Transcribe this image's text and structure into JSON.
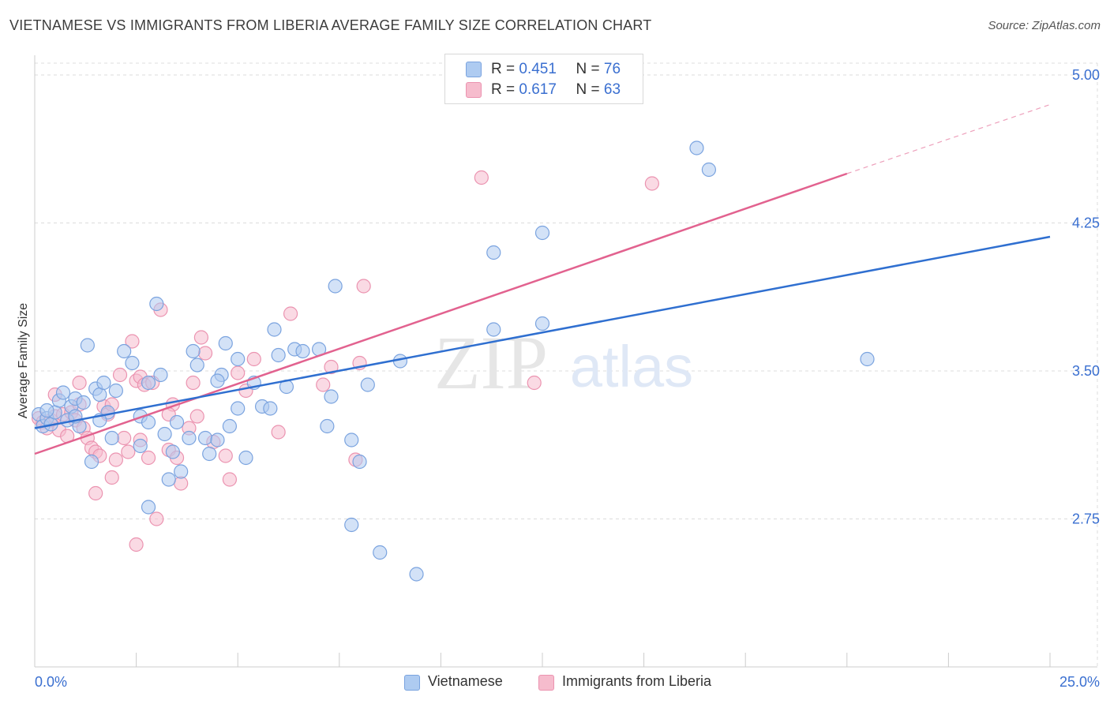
{
  "header": {
    "title": "VIETNAMESE VS IMMIGRANTS FROM LIBERIA AVERAGE FAMILY SIZE CORRELATION CHART",
    "source": "Source: ZipAtlas.com"
  },
  "watermark": {
    "zip": "ZIP",
    "atlas": "atlas"
  },
  "stats": {
    "vietnamese": {
      "r_label": "R =",
      "r": "0.451",
      "n_label": "N =",
      "n": "76"
    },
    "liberia": {
      "r_label": "R =",
      "r": "0.617",
      "n_label": "N =",
      "n": "63"
    }
  },
  "legend": {
    "vietnamese": "Vietnamese",
    "liberia": "Immigrants from Liberia"
  },
  "colors": {
    "blue_fill": "#aecbf1",
    "blue_stroke": "#7aa3df",
    "blue_line": "#2f6fd0",
    "pink_fill": "#f6bccd",
    "pink_stroke": "#eb93b0",
    "pink_line": "#e2628f",
    "tick_label": "#3a6fd0",
    "grid": "#dcdcdc"
  },
  "chart_data": {
    "type": "scatter",
    "title": "VIETNAMESE VS IMMIGRANTS FROM LIBERIA AVERAGE FAMILY SIZE CORRELATION CHART",
    "xlabel": "",
    "ylabel": "Average Family Size",
    "xlim": [
      0,
      25
    ],
    "ylim": [
      2.0,
      5.1
    ],
    "x_tick_labels": [
      "0.0%",
      "25.0%"
    ],
    "y_ticks": [
      2.75,
      3.5,
      4.25,
      5.0
    ],
    "y_tick_labels": [
      "2.75",
      "3.50",
      "4.25",
      "5.00"
    ],
    "grid": true,
    "legend_position": "bottom",
    "series": [
      {
        "name": "Vietnamese",
        "trend": {
          "x": [
            0,
            25
          ],
          "y": [
            3.21,
            4.18
          ]
        },
        "points": [
          [
            0.1,
            3.28
          ],
          [
            0.2,
            3.22
          ],
          [
            0.3,
            3.26
          ],
          [
            0.4,
            3.23
          ],
          [
            0.5,
            3.29
          ],
          [
            0.6,
            3.35
          ],
          [
            0.7,
            3.39
          ],
          [
            0.8,
            3.25
          ],
          [
            0.9,
            3.32
          ],
          [
            1.0,
            3.36
          ],
          [
            1.1,
            3.22
          ],
          [
            1.2,
            3.34
          ],
          [
            1.3,
            3.63
          ],
          [
            1.4,
            3.04
          ],
          [
            1.5,
            3.41
          ],
          [
            1.6,
            3.38
          ],
          [
            1.7,
            3.44
          ],
          [
            1.8,
            3.29
          ],
          [
            1.9,
            3.16
          ],
          [
            2.0,
            3.4
          ],
          [
            2.2,
            3.6
          ],
          [
            2.4,
            3.54
          ],
          [
            2.6,
            3.27
          ],
          [
            2.6,
            3.12
          ],
          [
            2.8,
            3.24
          ],
          [
            3.0,
            3.84
          ],
          [
            3.1,
            3.48
          ],
          [
            3.2,
            3.18
          ],
          [
            3.3,
            2.95
          ],
          [
            3.4,
            3.09
          ],
          [
            3.5,
            3.24
          ],
          [
            3.6,
            2.99
          ],
          [
            3.8,
            3.16
          ],
          [
            3.9,
            3.6
          ],
          [
            4.0,
            3.53
          ],
          [
            4.2,
            3.16
          ],
          [
            4.3,
            3.08
          ],
          [
            4.5,
            3.15
          ],
          [
            4.6,
            3.48
          ],
          [
            4.7,
            3.64
          ],
          [
            4.8,
            3.22
          ],
          [
            5.0,
            3.56
          ],
          [
            5.2,
            3.06
          ],
          [
            5.4,
            3.44
          ],
          [
            5.6,
            3.32
          ],
          [
            5.8,
            3.31
          ],
          [
            5.9,
            3.71
          ],
          [
            6.0,
            3.58
          ],
          [
            6.2,
            3.42
          ],
          [
            6.4,
            3.61
          ],
          [
            6.6,
            3.6
          ],
          [
            7.0,
            3.61
          ],
          [
            7.2,
            3.22
          ],
          [
            7.3,
            3.37
          ],
          [
            7.4,
            3.93
          ],
          [
            7.8,
            3.15
          ],
          [
            8.0,
            3.04
          ],
          [
            8.2,
            3.43
          ],
          [
            9.0,
            3.55
          ],
          [
            11.3,
            3.71
          ],
          [
            11.3,
            4.1
          ],
          [
            12.5,
            3.74
          ],
          [
            12.5,
            4.2
          ],
          [
            16.3,
            4.63
          ],
          [
            16.6,
            4.52
          ],
          [
            20.5,
            3.56
          ],
          [
            2.8,
            2.81
          ],
          [
            7.8,
            2.72
          ],
          [
            8.5,
            2.58
          ],
          [
            9.4,
            2.47
          ],
          [
            0.3,
            3.3
          ],
          [
            1.0,
            3.27
          ],
          [
            1.6,
            3.25
          ],
          [
            2.8,
            3.44
          ],
          [
            4.5,
            3.45
          ],
          [
            5.0,
            3.31
          ]
        ]
      },
      {
        "name": "Immigrants from Liberia",
        "trend": {
          "x": [
            0,
            20
          ],
          "y": [
            3.08,
            4.5
          ]
        },
        "trend_ext": {
          "x": [
            20,
            25
          ],
          "y": [
            4.5,
            4.85
          ]
        },
        "points": [
          [
            0.1,
            3.26
          ],
          [
            0.2,
            3.24
          ],
          [
            0.3,
            3.21
          ],
          [
            0.4,
            3.25
          ],
          [
            0.5,
            3.27
          ],
          [
            0.6,
            3.2
          ],
          [
            0.7,
            3.28
          ],
          [
            0.8,
            3.17
          ],
          [
            0.9,
            3.29
          ],
          [
            1.0,
            3.25
          ],
          [
            1.1,
            3.33
          ],
          [
            1.2,
            3.21
          ],
          [
            1.3,
            3.16
          ],
          [
            1.4,
            3.11
          ],
          [
            1.5,
            3.09
          ],
          [
            1.6,
            3.07
          ],
          [
            1.7,
            3.32
          ],
          [
            1.8,
            3.28
          ],
          [
            1.9,
            3.33
          ],
          [
            2.0,
            3.05
          ],
          [
            2.1,
            3.48
          ],
          [
            2.2,
            3.16
          ],
          [
            2.3,
            3.09
          ],
          [
            2.4,
            3.65
          ],
          [
            2.5,
            3.45
          ],
          [
            2.6,
            3.47
          ],
          [
            2.7,
            3.43
          ],
          [
            2.8,
            3.06
          ],
          [
            2.9,
            3.44
          ],
          [
            3.0,
            2.75
          ],
          [
            3.1,
            3.81
          ],
          [
            3.3,
            3.1
          ],
          [
            3.4,
            3.33
          ],
          [
            3.5,
            3.06
          ],
          [
            3.6,
            2.93
          ],
          [
            3.9,
            3.44
          ],
          [
            4.0,
            3.27
          ],
          [
            4.1,
            3.67
          ],
          [
            4.2,
            3.59
          ],
          [
            4.4,
            3.14
          ],
          [
            4.7,
            3.07
          ],
          [
            4.8,
            2.95
          ],
          [
            5.0,
            3.49
          ],
          [
            5.2,
            3.4
          ],
          [
            5.4,
            3.56
          ],
          [
            6.0,
            3.19
          ],
          [
            6.3,
            3.79
          ],
          [
            7.1,
            3.43
          ],
          [
            7.3,
            3.52
          ],
          [
            7.9,
            3.05
          ],
          [
            8.0,
            3.54
          ],
          [
            8.1,
            3.93
          ],
          [
            11.0,
            4.48
          ],
          [
            12.3,
            3.44
          ],
          [
            15.2,
            4.45
          ],
          [
            2.5,
            2.62
          ],
          [
            1.5,
            2.88
          ],
          [
            1.9,
            2.96
          ],
          [
            0.5,
            3.38
          ],
          [
            1.1,
            3.44
          ],
          [
            2.6,
            3.15
          ],
          [
            3.3,
            3.28
          ],
          [
            3.8,
            3.21
          ]
        ]
      }
    ]
  }
}
